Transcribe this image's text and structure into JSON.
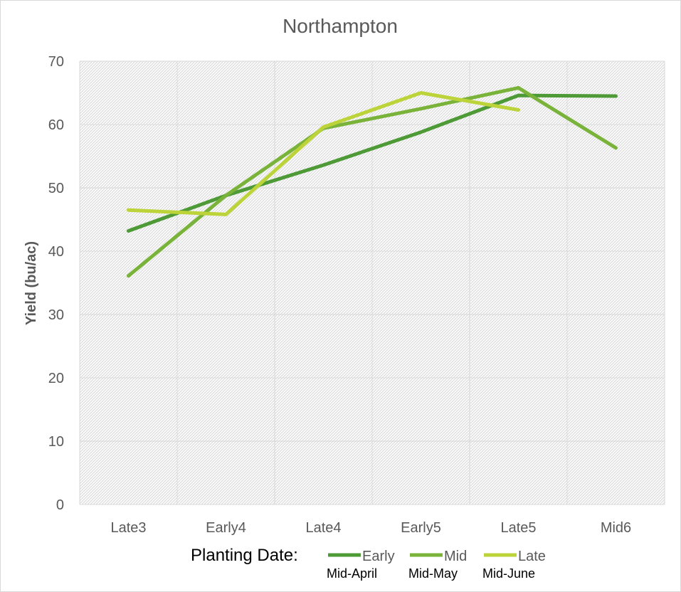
{
  "chart_data": {
    "type": "line",
    "title": "Northampton",
    "xlabel": "",
    "ylabel": "Yield (bu/ac)",
    "categories": [
      "Late3",
      "Early4",
      "Late4",
      "Early5",
      "Late5",
      "Mid6"
    ],
    "ylim": [
      0,
      70
    ],
    "yticks": [
      0,
      10,
      20,
      30,
      40,
      50,
      60,
      70
    ],
    "grid": true,
    "legend_position": "bottom",
    "legend_prefix": "Planting Date:",
    "series": [
      {
        "name": "Early",
        "sublabel": "Mid-April",
        "color": "#4e9a37",
        "values": [
          43.2,
          48.8,
          53.6,
          58.8,
          64.6,
          64.5
        ]
      },
      {
        "name": "Mid",
        "sublabel": "Mid-May",
        "color": "#7ab33a",
        "values": [
          36.1,
          48.8,
          59.4,
          62.5,
          65.8,
          56.3
        ]
      },
      {
        "name": "Late",
        "sublabel": "Mid-June",
        "color": "#bcd33a",
        "values": [
          46.5,
          45.8,
          59.6,
          65.0,
          62.3,
          null
        ]
      }
    ]
  }
}
